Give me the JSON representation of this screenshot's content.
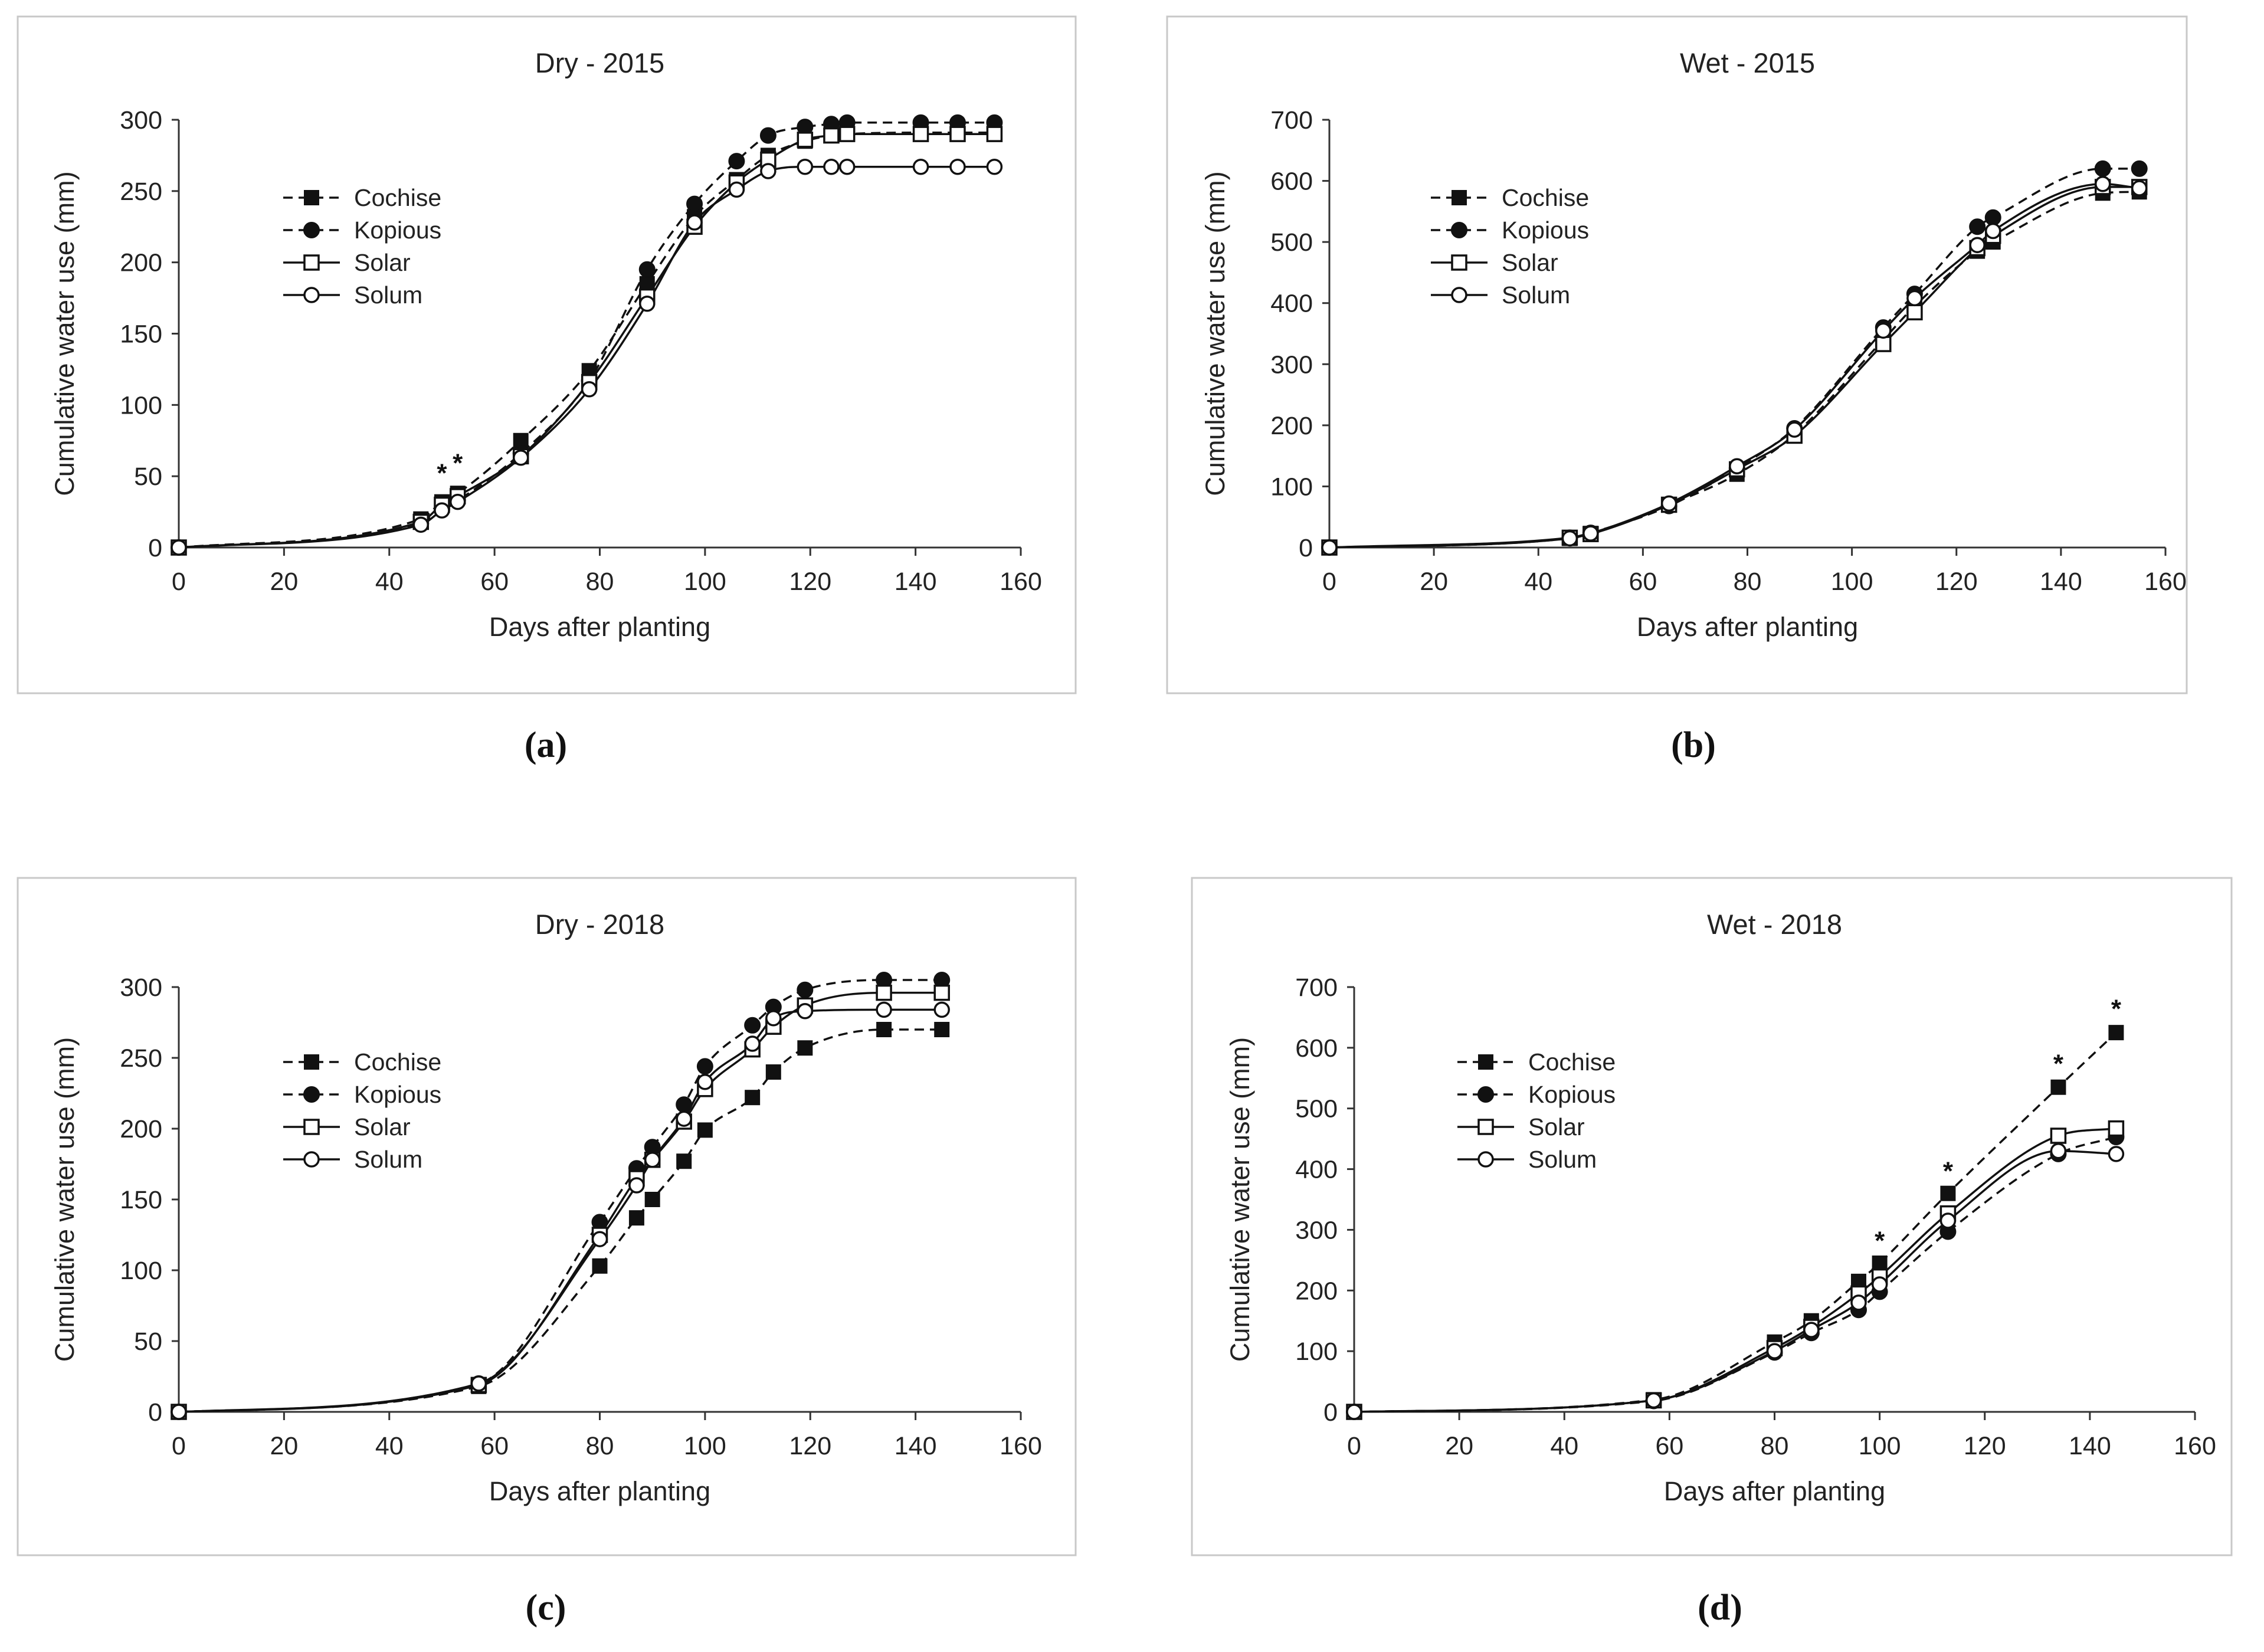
{
  "chart_data": [
    {
      "type": "line",
      "panel": "(a)",
      "title": "Dry - 2015",
      "xlabel": "Days after planting",
      "ylabel": "Cumulative water use (mm)",
      "xlim": [
        0,
        160
      ],
      "ylim": [
        0,
        300
      ],
      "xticks": [
        "0",
        "20",
        "40",
        "60",
        "80",
        "100",
        "120",
        "140",
        "160"
      ],
      "yticks": [
        "0",
        "50",
        "100",
        "150",
        "200",
        "250",
        "300"
      ],
      "legend": "upper-left",
      "series": [
        {
          "name": "Cochise",
          "style": "dashed",
          "marker": "square-filled",
          "x": [
            0,
            46,
            50,
            53,
            65,
            78,
            89,
            98,
            106,
            112,
            119,
            124,
            127,
            141,
            148,
            155
          ],
          "y": [
            0,
            20,
            32,
            38,
            75,
            124,
            185,
            232,
            258,
            275,
            285,
            289,
            290,
            291,
            291,
            291
          ]
        },
        {
          "name": "Kopious",
          "style": "dashed",
          "marker": "circle-filled",
          "x": [
            0,
            46,
            50,
            53,
            65,
            78,
            89,
            98,
            106,
            112,
            119,
            124,
            127,
            141,
            148,
            155
          ],
          "y": [
            0,
            17,
            27,
            33,
            66,
            117,
            195,
            241,
            271,
            289,
            295,
            297,
            298,
            298,
            298,
            298
          ]
        },
        {
          "name": "Solar",
          "style": "solid",
          "marker": "square-open",
          "x": [
            0,
            46,
            50,
            53,
            65,
            78,
            89,
            98,
            106,
            112,
            119,
            124,
            127,
            141,
            148,
            155
          ],
          "y": [
            0,
            18,
            30,
            36,
            64,
            116,
            176,
            225,
            256,
            272,
            286,
            289,
            290,
            290,
            290,
            290
          ]
        },
        {
          "name": "Solum",
          "style": "solid",
          "marker": "circle-open",
          "x": [
            0,
            46,
            50,
            53,
            65,
            78,
            89,
            98,
            106,
            112,
            119,
            124,
            127,
            141,
            148,
            155
          ],
          "y": [
            0,
            16,
            26,
            32,
            63,
            111,
            171,
            228,
            251,
            264,
            267,
            267,
            267,
            267,
            267,
            267
          ]
        }
      ],
      "significance": [
        {
          "x": 50,
          "y": 57,
          "text": "*"
        },
        {
          "x": 53,
          "y": 64,
          "text": "*"
        }
      ]
    },
    {
      "type": "line",
      "panel": "(b)",
      "title": "Wet - 2015",
      "xlabel": "Days after planting",
      "ylabel": "Cumulative water use (mm)",
      "xlim": [
        0,
        160
      ],
      "ylim": [
        0,
        700
      ],
      "xticks": [
        "0",
        "20",
        "40",
        "60",
        "80",
        "100",
        "120",
        "140",
        "160"
      ],
      "yticks": [
        "0",
        "100",
        "200",
        "300",
        "400",
        "500",
        "600",
        "700"
      ],
      "legend": "upper-left",
      "series": [
        {
          "name": "Cochise",
          "style": "dashed",
          "marker": "square-filled",
          "x": [
            0,
            46,
            50,
            65,
            78,
            89,
            106,
            112,
            124,
            127,
            148,
            155
          ],
          "y": [
            0,
            15,
            23,
            70,
            120,
            185,
            340,
            395,
            485,
            500,
            580,
            582
          ]
        },
        {
          "name": "Kopious",
          "style": "dashed",
          "marker": "circle-filled",
          "x": [
            0,
            46,
            50,
            65,
            78,
            89,
            106,
            112,
            124,
            127,
            148,
            155
          ],
          "y": [
            0,
            16,
            24,
            68,
            130,
            195,
            360,
            415,
            525,
            540,
            620,
            620
          ]
        },
        {
          "name": "Solar",
          "style": "solid",
          "marker": "square-open",
          "x": [
            0,
            46,
            50,
            65,
            78,
            89,
            106,
            112,
            124,
            127,
            148,
            155
          ],
          "y": [
            0,
            16,
            22,
            70,
            128,
            183,
            333,
            385,
            490,
            510,
            590,
            590
          ]
        },
        {
          "name": "Solum",
          "style": "solid",
          "marker": "circle-open",
          "x": [
            0,
            46,
            50,
            65,
            78,
            89,
            106,
            112,
            124,
            127,
            148,
            155
          ],
          "y": [
            0,
            15,
            23,
            72,
            133,
            193,
            355,
            408,
            495,
            518,
            595,
            588
          ]
        }
      ]
    },
    {
      "type": "line",
      "panel": "(c)",
      "title": "Dry - 2018",
      "xlabel": "Days after planting",
      "ylabel": "Cumulative water use (mm)",
      "xlim": [
        0,
        160
      ],
      "ylim": [
        0,
        300
      ],
      "xticks": [
        "0",
        "20",
        "40",
        "60",
        "80",
        "100",
        "120",
        "140",
        "160"
      ],
      "yticks": [
        "0",
        "50",
        "100",
        "150",
        "200",
        "250",
        "300"
      ],
      "legend": "center-left",
      "series": [
        {
          "name": "Cochise",
          "style": "dashed",
          "marker": "square-filled",
          "x": [
            0,
            57,
            80,
            87,
            90,
            96,
            100,
            109,
            113,
            119,
            134,
            145
          ],
          "y": [
            0,
            18,
            103,
            137,
            150,
            177,
            199,
            222,
            240,
            257,
            270,
            270
          ]
        },
        {
          "name": "Kopious",
          "style": "dashed",
          "marker": "circle-filled",
          "x": [
            0,
            57,
            80,
            87,
            90,
            96,
            100,
            109,
            113,
            119,
            134,
            145
          ],
          "y": [
            0,
            20,
            134,
            172,
            187,
            217,
            244,
            273,
            286,
            298,
            305,
            305
          ]
        },
        {
          "name": "Solar",
          "style": "solid",
          "marker": "square-open",
          "x": [
            0,
            57,
            80,
            87,
            90,
            96,
            100,
            109,
            113,
            119,
            134,
            145
          ],
          "y": [
            0,
            19,
            125,
            165,
            178,
            205,
            228,
            256,
            272,
            287,
            296,
            296
          ]
        },
        {
          "name": "Solum",
          "style": "solid",
          "marker": "circle-open",
          "x": [
            0,
            57,
            80,
            87,
            90,
            96,
            100,
            109,
            113,
            119,
            134,
            145
          ],
          "y": [
            0,
            20,
            122,
            160,
            178,
            207,
            233,
            260,
            278,
            283,
            284,
            284
          ]
        }
      ]
    },
    {
      "type": "line",
      "panel": "(d)",
      "title": "Wet - 2018",
      "xlabel": "Days after planting",
      "ylabel": "Cumulative water use (mm)",
      "xlim": [
        0,
        160
      ],
      "ylim": [
        0,
        700
      ],
      "xticks": [
        "0",
        "20",
        "40",
        "60",
        "80",
        "100",
        "120",
        "140",
        "160"
      ],
      "yticks": [
        "0",
        "100",
        "200",
        "300",
        "400",
        "500",
        "600",
        "700"
      ],
      "legend": "center-left",
      "series": [
        {
          "name": "Cochise",
          "style": "dashed",
          "marker": "square-filled",
          "x": [
            0,
            57,
            80,
            87,
            96,
            100,
            113,
            134,
            145
          ],
          "y": [
            0,
            20,
            115,
            150,
            215,
            245,
            360,
            535,
            625
          ]
        },
        {
          "name": "Kopious",
          "style": "dashed",
          "marker": "circle-filled",
          "x": [
            0,
            57,
            80,
            87,
            96,
            100,
            113,
            134,
            145
          ],
          "y": [
            0,
            18,
            98,
            130,
            168,
            198,
            297,
            425,
            453
          ]
        },
        {
          "name": "Solar",
          "style": "solid",
          "marker": "square-open",
          "x": [
            0,
            57,
            80,
            87,
            96,
            100,
            113,
            134,
            145
          ],
          "y": [
            0,
            19,
            105,
            140,
            195,
            223,
            327,
            455,
            467
          ]
        },
        {
          "name": "Solum",
          "style": "solid",
          "marker": "circle-open",
          "x": [
            0,
            57,
            80,
            87,
            96,
            100,
            113,
            134,
            145
          ],
          "y": [
            0,
            19,
            100,
            135,
            180,
            210,
            315,
            430,
            425
          ]
        }
      ],
      "significance": [
        {
          "x": 100,
          "y": 293,
          "text": "*"
        },
        {
          "x": 113,
          "y": 408,
          "text": "*"
        },
        {
          "x": 134,
          "y": 585,
          "text": "*"
        },
        {
          "x": 145,
          "y": 675,
          "text": "*"
        }
      ]
    }
  ]
}
